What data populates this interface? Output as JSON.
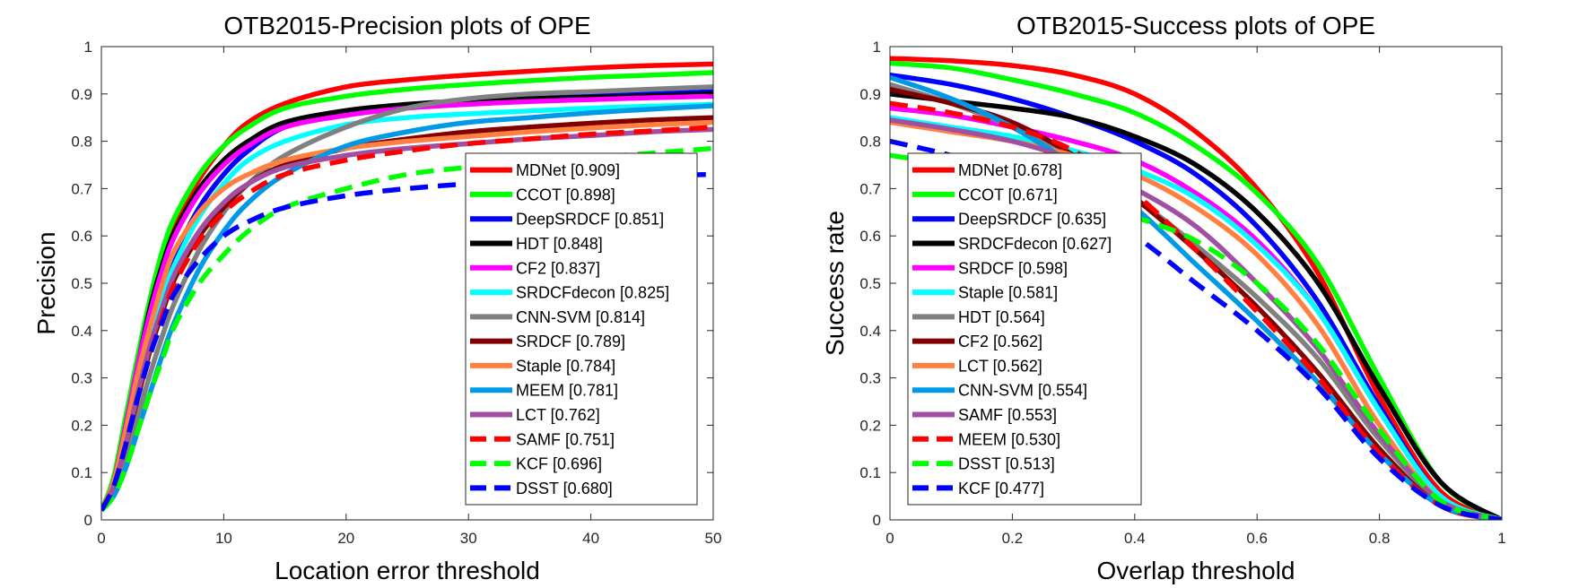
{
  "chart_data": [
    {
      "type": "line",
      "title": "OTB2015-Precision plots of OPE",
      "xlabel": "Location error threshold",
      "ylabel": "Precision",
      "xlim": [
        0,
        50
      ],
      "ylim": [
        0,
        1
      ],
      "xticks": [
        0,
        10,
        20,
        30,
        40,
        50
      ],
      "yticks": [
        0,
        0.1,
        0.2,
        0.3,
        0.4,
        0.5,
        0.6,
        0.7,
        0.8,
        0.9,
        1
      ],
      "legend_position": "bottom-right",
      "series": [
        {
          "name": "MDNet [0.909]",
          "color": "#ff0000",
          "dashed": false,
          "x": [
            0,
            1,
            2,
            3,
            4,
            5,
            6,
            8,
            10,
            12,
            15,
            20,
            25,
            30,
            35,
            40,
            45,
            50
          ],
          "y": [
            0.02,
            0.08,
            0.2,
            0.33,
            0.45,
            0.55,
            0.62,
            0.72,
            0.79,
            0.84,
            0.88,
            0.915,
            0.93,
            0.94,
            0.948,
            0.955,
            0.96,
            0.963
          ]
        },
        {
          "name": "CCOT [0.898]",
          "color": "#00ff00",
          "dashed": false,
          "x": [
            0,
            1,
            2,
            3,
            4,
            5,
            6,
            8,
            10,
            12,
            15,
            20,
            25,
            30,
            35,
            40,
            45,
            50
          ],
          "y": [
            0.02,
            0.09,
            0.22,
            0.35,
            0.47,
            0.57,
            0.64,
            0.73,
            0.79,
            0.83,
            0.87,
            0.895,
            0.91,
            0.92,
            0.928,
            0.935,
            0.94,
            0.945
          ]
        },
        {
          "name": "DeepSRDCF [0.851]",
          "color": "#0000ff",
          "dashed": false,
          "x": [
            0,
            1,
            2,
            3,
            4,
            5,
            6,
            8,
            10,
            12,
            15,
            20,
            25,
            30,
            35,
            40,
            45,
            50
          ],
          "y": [
            0.02,
            0.07,
            0.17,
            0.28,
            0.39,
            0.49,
            0.56,
            0.66,
            0.73,
            0.78,
            0.83,
            0.86,
            0.875,
            0.885,
            0.89,
            0.895,
            0.9,
            0.905
          ]
        },
        {
          "name": "HDT [0.848]",
          "color": "#000000",
          "dashed": false,
          "x": [
            0,
            1,
            2,
            3,
            4,
            5,
            6,
            8,
            10,
            12,
            15,
            20,
            25,
            30,
            35,
            40,
            45,
            50
          ],
          "y": [
            0.02,
            0.08,
            0.2,
            0.33,
            0.45,
            0.54,
            0.61,
            0.7,
            0.76,
            0.8,
            0.84,
            0.865,
            0.878,
            0.886,
            0.89,
            0.893,
            0.896,
            0.9
          ]
        },
        {
          "name": "CF2 [0.837]",
          "color": "#ff00ff",
          "dashed": false,
          "x": [
            0,
            1,
            2,
            3,
            4,
            5,
            6,
            8,
            10,
            12,
            15,
            20,
            25,
            30,
            35,
            40,
            45,
            50
          ],
          "y": [
            0.02,
            0.08,
            0.2,
            0.33,
            0.44,
            0.53,
            0.6,
            0.69,
            0.75,
            0.79,
            0.83,
            0.855,
            0.87,
            0.878,
            0.884,
            0.888,
            0.892,
            0.895
          ]
        },
        {
          "name": "SRDCFdecon [0.825]",
          "color": "#00ffff",
          "dashed": false,
          "x": [
            0,
            1,
            2,
            3,
            4,
            5,
            6,
            8,
            10,
            12,
            15,
            20,
            25,
            30,
            35,
            40,
            45,
            50
          ],
          "y": [
            0.02,
            0.07,
            0.16,
            0.27,
            0.38,
            0.47,
            0.54,
            0.64,
            0.71,
            0.76,
            0.8,
            0.835,
            0.85,
            0.858,
            0.864,
            0.87,
            0.874,
            0.878
          ]
        },
        {
          "name": "CNN-SVM [0.814]",
          "color": "#808080",
          "dashed": false,
          "x": [
            0,
            1,
            2,
            3,
            4,
            5,
            6,
            8,
            10,
            12,
            15,
            20,
            25,
            30,
            35,
            40,
            45,
            50
          ],
          "y": [
            0.02,
            0.06,
            0.13,
            0.22,
            0.31,
            0.39,
            0.46,
            0.57,
            0.65,
            0.71,
            0.77,
            0.83,
            0.87,
            0.89,
            0.9,
            0.905,
            0.91,
            0.915
          ]
        },
        {
          "name": "SRDCF [0.789]",
          "color": "#800000",
          "dashed": false,
          "x": [
            0,
            1,
            2,
            3,
            4,
            5,
            6,
            8,
            10,
            12,
            15,
            20,
            25,
            30,
            35,
            40,
            45,
            50
          ],
          "y": [
            0.02,
            0.07,
            0.16,
            0.26,
            0.36,
            0.44,
            0.51,
            0.6,
            0.66,
            0.71,
            0.75,
            0.785,
            0.805,
            0.82,
            0.83,
            0.838,
            0.845,
            0.85
          ]
        },
        {
          "name": "Staple [0.784]",
          "color": "#ff8040",
          "dashed": false,
          "x": [
            0,
            1,
            2,
            3,
            4,
            5,
            6,
            8,
            10,
            12,
            15,
            20,
            25,
            30,
            35,
            40,
            45,
            50
          ],
          "y": [
            0.02,
            0.08,
            0.19,
            0.31,
            0.41,
            0.5,
            0.57,
            0.65,
            0.7,
            0.73,
            0.76,
            0.785,
            0.8,
            0.81,
            0.82,
            0.828,
            0.835,
            0.84
          ]
        },
        {
          "name": "MEEM [0.781]",
          "color": "#0099e6",
          "dashed": false,
          "x": [
            0,
            1,
            2,
            3,
            4,
            5,
            6,
            8,
            10,
            12,
            15,
            20,
            25,
            30,
            35,
            40,
            45,
            50
          ],
          "y": [
            0.02,
            0.05,
            0.11,
            0.19,
            0.27,
            0.35,
            0.42,
            0.53,
            0.61,
            0.67,
            0.73,
            0.79,
            0.82,
            0.84,
            0.85,
            0.86,
            0.868,
            0.875
          ]
        },
        {
          "name": "LCT [0.762]",
          "color": "#a050a0",
          "dashed": false,
          "x": [
            0,
            1,
            2,
            3,
            4,
            5,
            6,
            8,
            10,
            12,
            15,
            20,
            25,
            30,
            35,
            40,
            45,
            50
          ],
          "y": [
            0.02,
            0.07,
            0.16,
            0.27,
            0.37,
            0.45,
            0.52,
            0.61,
            0.67,
            0.71,
            0.745,
            0.77,
            0.785,
            0.795,
            0.805,
            0.812,
            0.82,
            0.825
          ]
        },
        {
          "name": "SAMF [0.751]",
          "color": "#ff0000",
          "dashed": true,
          "x": [
            0,
            1,
            2,
            3,
            4,
            5,
            6,
            8,
            10,
            12,
            15,
            20,
            25,
            30,
            35,
            40,
            45,
            50
          ],
          "y": [
            0.02,
            0.07,
            0.16,
            0.26,
            0.35,
            0.43,
            0.5,
            0.59,
            0.65,
            0.69,
            0.73,
            0.76,
            0.78,
            0.795,
            0.805,
            0.815,
            0.822,
            0.83
          ]
        },
        {
          "name": "KCF [0.696]",
          "color": "#00ff00",
          "dashed": true,
          "x": [
            0,
            1,
            2,
            3,
            4,
            5,
            6,
            8,
            10,
            12,
            15,
            20,
            25,
            30,
            35,
            40,
            45,
            50
          ],
          "y": [
            0.02,
            0.05,
            0.11,
            0.19,
            0.27,
            0.34,
            0.41,
            0.5,
            0.56,
            0.61,
            0.66,
            0.7,
            0.73,
            0.745,
            0.755,
            0.765,
            0.775,
            0.785
          ]
        },
        {
          "name": "DSST [0.680]",
          "color": "#0000ff",
          "dashed": true,
          "x": [
            0,
            1,
            2,
            3,
            4,
            5,
            6,
            8,
            10,
            12,
            15,
            20,
            25,
            30,
            35,
            40,
            45,
            50
          ],
          "y": [
            0.02,
            0.07,
            0.16,
            0.26,
            0.35,
            0.42,
            0.48,
            0.55,
            0.6,
            0.63,
            0.66,
            0.685,
            0.7,
            0.71,
            0.717,
            0.722,
            0.727,
            0.73
          ]
        }
      ]
    },
    {
      "type": "line",
      "title": "OTB2015-Success plots of OPE",
      "xlabel": "Overlap threshold",
      "ylabel": "Success rate",
      "xlim": [
        0,
        1
      ],
      "ylim": [
        0,
        1
      ],
      "xticks": [
        0,
        0.2,
        0.4,
        0.6,
        0.8,
        1
      ],
      "yticks": [
        0,
        0.1,
        0.2,
        0.3,
        0.4,
        0.5,
        0.6,
        0.7,
        0.8,
        0.9,
        1
      ],
      "legend_position": "bottom-left",
      "series": [
        {
          "name": "MDNet [0.678]",
          "color": "#ff0000",
          "dashed": false,
          "x": [
            0,
            0.1,
            0.2,
            0.3,
            0.4,
            0.5,
            0.6,
            0.7,
            0.8,
            0.9,
            1
          ],
          "y": [
            0.975,
            0.97,
            0.96,
            0.94,
            0.9,
            0.82,
            0.7,
            0.52,
            0.26,
            0.06,
            0.0
          ]
        },
        {
          "name": "CCOT [0.671]",
          "color": "#00ff00",
          "dashed": false,
          "x": [
            0,
            0.1,
            0.2,
            0.3,
            0.4,
            0.5,
            0.6,
            0.7,
            0.8,
            0.9,
            1
          ],
          "y": [
            0.965,
            0.955,
            0.93,
            0.9,
            0.86,
            0.79,
            0.69,
            0.54,
            0.3,
            0.08,
            0.0
          ]
        },
        {
          "name": "DeepSRDCF [0.635]",
          "color": "#0000ff",
          "dashed": false,
          "x": [
            0,
            0.1,
            0.2,
            0.3,
            0.4,
            0.5,
            0.6,
            0.7,
            0.8,
            0.9,
            1
          ],
          "y": [
            0.94,
            0.92,
            0.89,
            0.85,
            0.8,
            0.73,
            0.62,
            0.46,
            0.24,
            0.05,
            0.0
          ]
        },
        {
          "name": "SRDCFdecon [0.627]",
          "color": "#000000",
          "dashed": false,
          "x": [
            0,
            0.1,
            0.2,
            0.3,
            0.4,
            0.5,
            0.6,
            0.7,
            0.8,
            0.9,
            1
          ],
          "y": [
            0.9,
            0.885,
            0.87,
            0.85,
            0.81,
            0.75,
            0.65,
            0.5,
            0.28,
            0.08,
            0.0
          ]
        },
        {
          "name": "SRDCF [0.598]",
          "color": "#ff00ff",
          "dashed": false,
          "x": [
            0,
            0.1,
            0.2,
            0.3,
            0.4,
            0.5,
            0.6,
            0.7,
            0.8,
            0.9,
            1
          ],
          "y": [
            0.87,
            0.855,
            0.83,
            0.8,
            0.76,
            0.69,
            0.59,
            0.44,
            0.23,
            0.05,
            0.0
          ]
        },
        {
          "name": "Staple [0.581]",
          "color": "#00ffff",
          "dashed": false,
          "x": [
            0,
            0.1,
            0.2,
            0.3,
            0.4,
            0.5,
            0.6,
            0.7,
            0.8,
            0.9,
            1
          ],
          "y": [
            0.85,
            0.83,
            0.81,
            0.78,
            0.74,
            0.68,
            0.58,
            0.44,
            0.23,
            0.05,
            0.0
          ]
        },
        {
          "name": "HDT [0.564]",
          "color": "#808080",
          "dashed": false,
          "x": [
            0,
            0.1,
            0.2,
            0.3,
            0.4,
            0.5,
            0.6,
            0.7,
            0.8,
            0.9,
            1
          ],
          "y": [
            0.92,
            0.88,
            0.83,
            0.76,
            0.68,
            0.58,
            0.47,
            0.34,
            0.17,
            0.04,
            0.0
          ]
        },
        {
          "name": "CF2 [0.562]",
          "color": "#800000",
          "dashed": false,
          "x": [
            0,
            0.1,
            0.2,
            0.3,
            0.4,
            0.5,
            0.6,
            0.7,
            0.8,
            0.9,
            1
          ],
          "y": [
            0.91,
            0.88,
            0.84,
            0.77,
            0.68,
            0.57,
            0.45,
            0.31,
            0.15,
            0.03,
            0.0
          ]
        },
        {
          "name": "LCT [0.562]",
          "color": "#ff8040",
          "dashed": false,
          "x": [
            0,
            0.1,
            0.2,
            0.3,
            0.4,
            0.5,
            0.6,
            0.7,
            0.8,
            0.9,
            1
          ],
          "y": [
            0.84,
            0.82,
            0.8,
            0.77,
            0.73,
            0.66,
            0.56,
            0.41,
            0.2,
            0.04,
            0.0
          ]
        },
        {
          "name": "CNN-SVM [0.554]",
          "color": "#0099e6",
          "dashed": false,
          "x": [
            0,
            0.1,
            0.2,
            0.3,
            0.4,
            0.5,
            0.6,
            0.7,
            0.8,
            0.9,
            1
          ],
          "y": [
            0.935,
            0.89,
            0.83,
            0.75,
            0.66,
            0.54,
            0.42,
            0.29,
            0.14,
            0.03,
            0.0
          ]
        },
        {
          "name": "SAMF [0.553]",
          "color": "#a050a0",
          "dashed": false,
          "x": [
            0,
            0.1,
            0.2,
            0.3,
            0.4,
            0.5,
            0.6,
            0.7,
            0.8,
            0.9,
            1
          ],
          "y": [
            0.845,
            0.825,
            0.8,
            0.76,
            0.7,
            0.62,
            0.5,
            0.36,
            0.18,
            0.04,
            0.0
          ]
        },
        {
          "name": "MEEM [0.530]",
          "color": "#ff0000",
          "dashed": true,
          "x": [
            0,
            0.1,
            0.2,
            0.3,
            0.4,
            0.5,
            0.6,
            0.7,
            0.8,
            0.9,
            1
          ],
          "y": [
            0.88,
            0.86,
            0.83,
            0.78,
            0.69,
            0.57,
            0.44,
            0.3,
            0.14,
            0.03,
            0.0
          ]
        },
        {
          "name": "DSST [0.513]",
          "color": "#00ff00",
          "dashed": true,
          "x": [
            0,
            0.1,
            0.2,
            0.3,
            0.4,
            0.5,
            0.6,
            0.7,
            0.8,
            0.9,
            1
          ],
          "y": [
            0.77,
            0.75,
            0.72,
            0.68,
            0.64,
            0.59,
            0.5,
            0.37,
            0.19,
            0.04,
            0.0
          ]
        },
        {
          "name": "KCF [0.477]",
          "color": "#0000ff",
          "dashed": true,
          "x": [
            0,
            0.1,
            0.2,
            0.3,
            0.4,
            0.5,
            0.6,
            0.7,
            0.8,
            0.9,
            1
          ],
          "y": [
            0.8,
            0.77,
            0.73,
            0.67,
            0.6,
            0.5,
            0.4,
            0.28,
            0.13,
            0.03,
            0.0
          ]
        }
      ]
    }
  ]
}
